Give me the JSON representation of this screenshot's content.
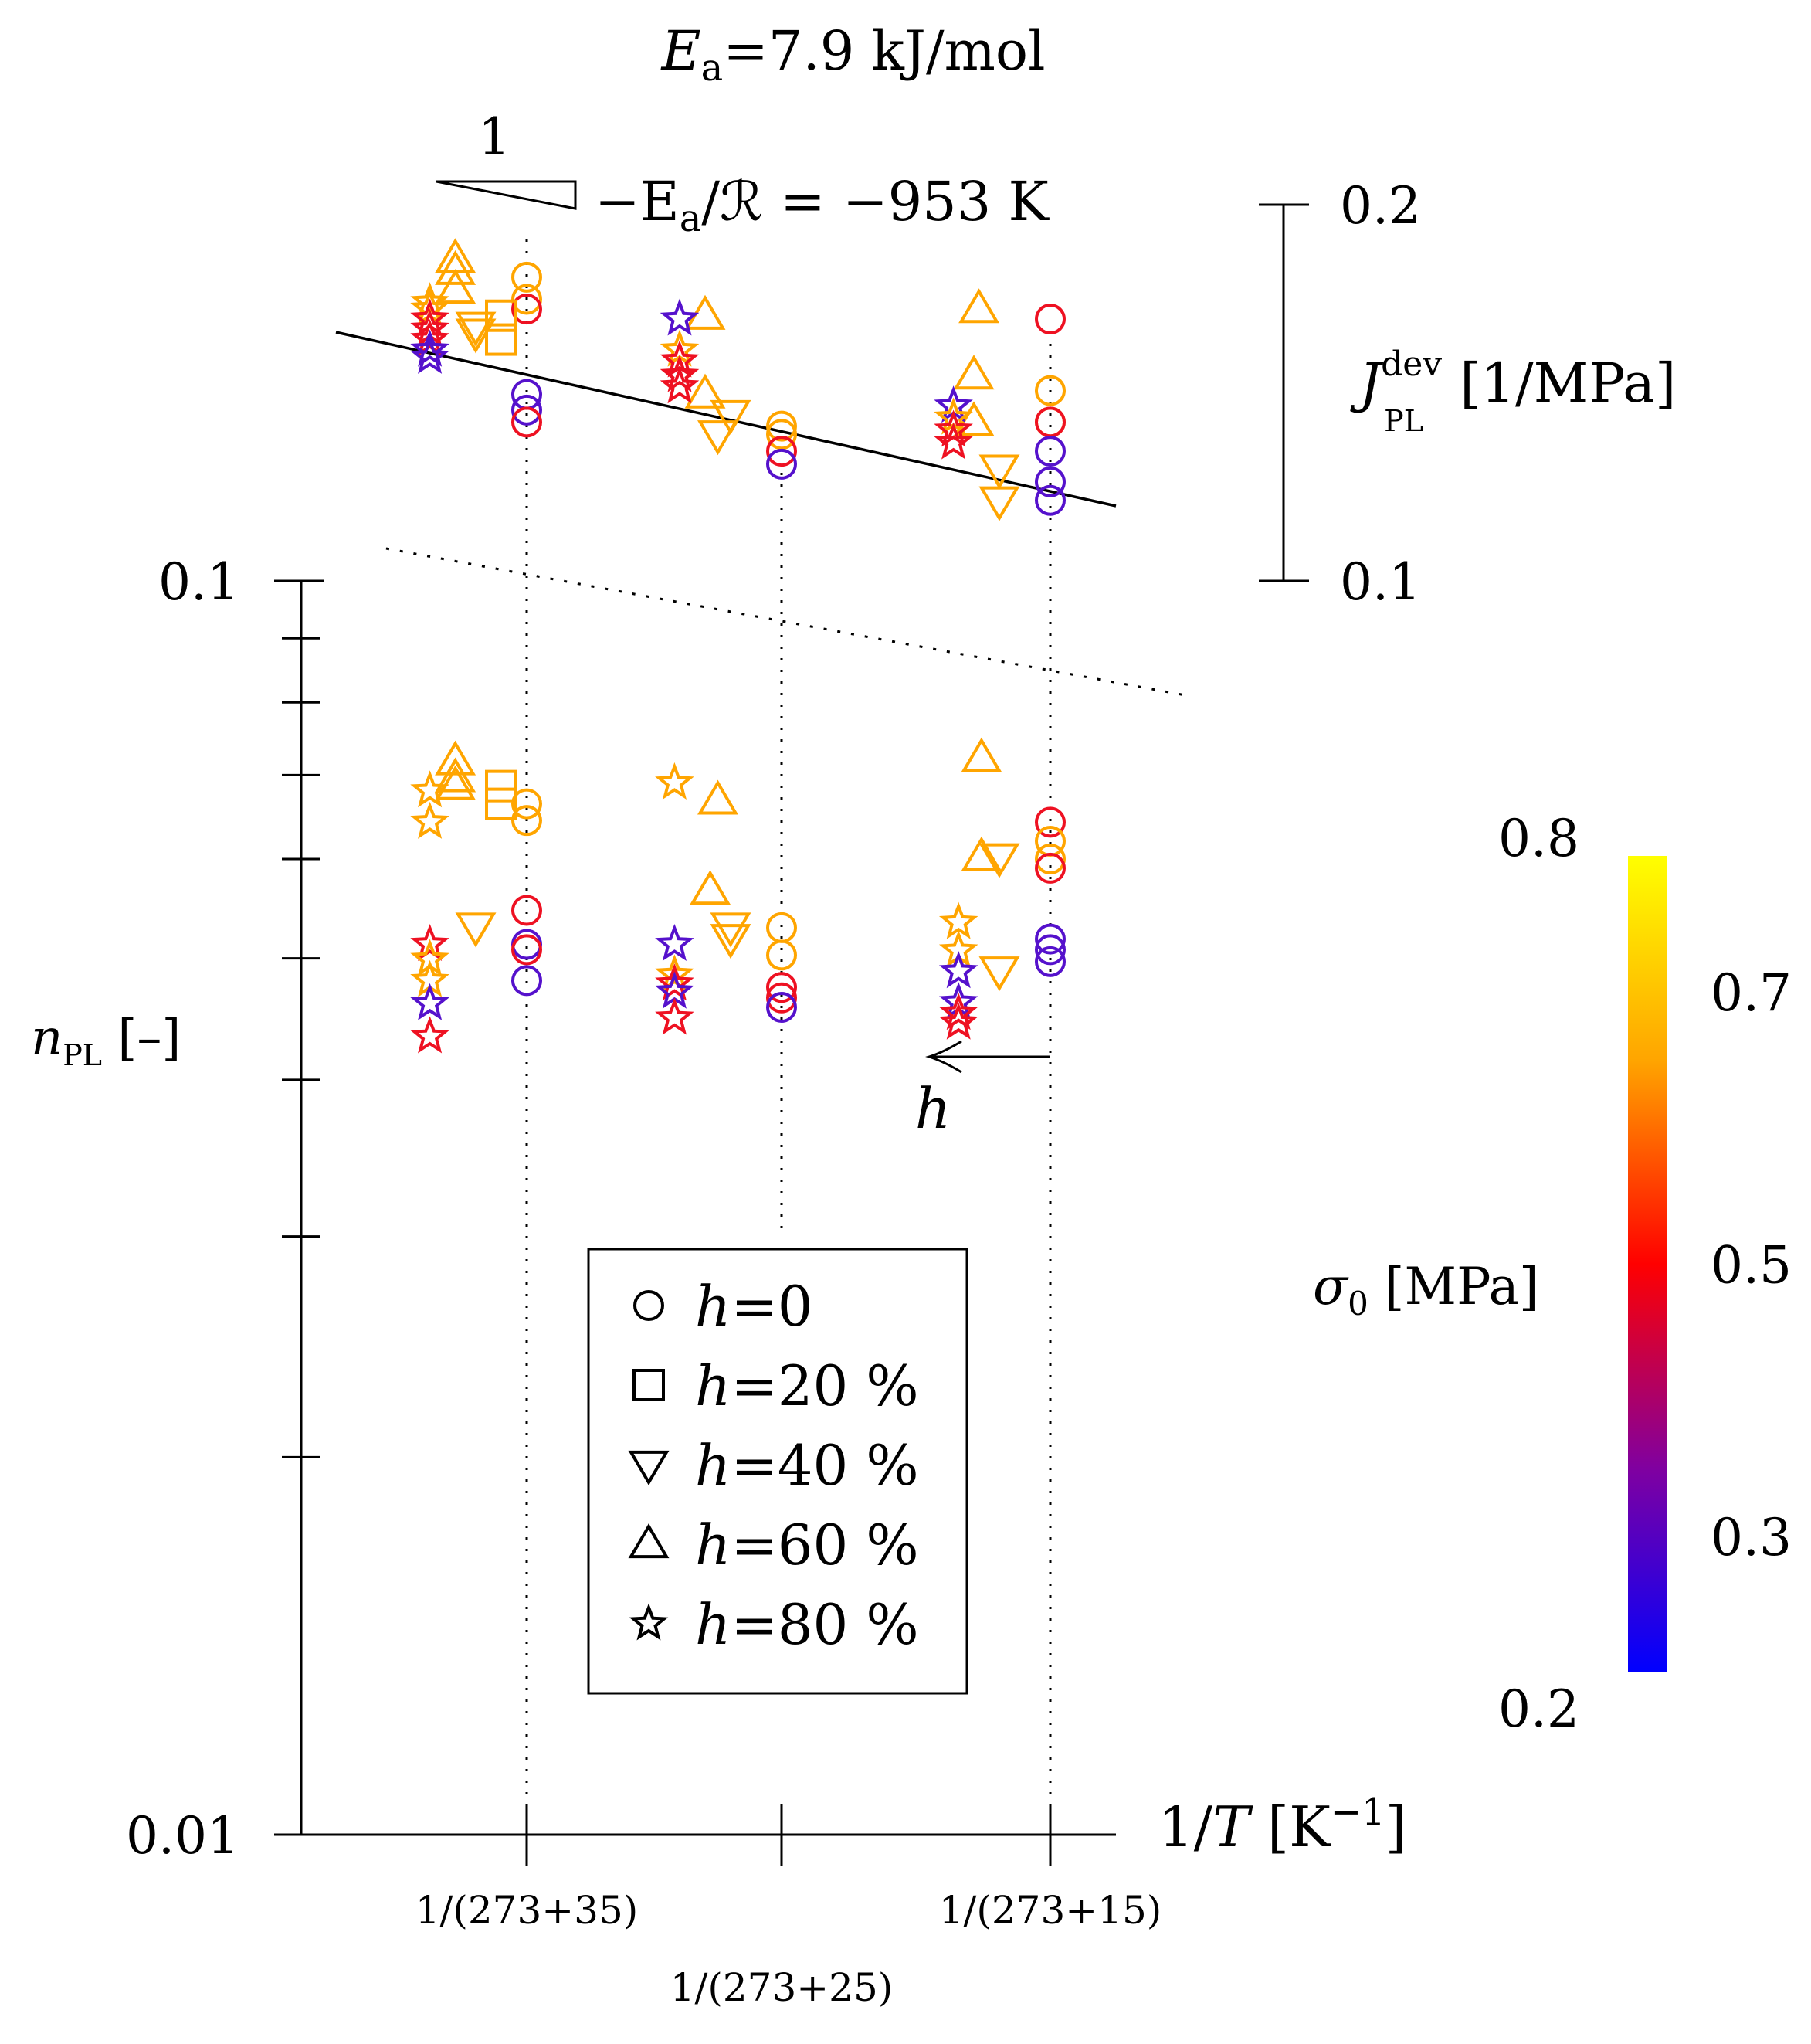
{
  "chart_data": {
    "type": "scatter",
    "title": {
      "main": "E",
      "sub": "a",
      "rest": "=7.9 kJ/mol"
    },
    "slope_annotation": {
      "run": "1",
      "text_pre": "−E",
      "text_sub": "a",
      "text_post": "/ℛ = −953 K"
    },
    "xlabel": {
      "pre": "1/",
      "var": "T",
      "unit_open": " [K",
      "unit_sup": "−1",
      "unit_close": "]"
    },
    "x_categories": [
      "1/(273+35)",
      "1/(273+25)",
      "1/(273+15)"
    ],
    "x_temperatures_C": [
      35,
      25,
      15
    ],
    "left_axis": {
      "label_var": "n",
      "label_sub": "PL",
      "label_unit": " [–]",
      "scale": "log",
      "range": [
        0.01,
        0.1
      ],
      "tick_labels": [
        "0.1",
        "0.01"
      ]
    },
    "right_axis": {
      "label_var": "J",
      "label_sup": "dev",
      "label_sub": "PL",
      "label_unit": " [1/MPa]",
      "scale": "log",
      "range": [
        0.1,
        0.2
      ],
      "tick_labels": [
        "0.2",
        "0.1"
      ]
    },
    "colorbar": {
      "label_var": "σ",
      "label_sub": "0",
      "label_unit": " [MPa]",
      "range": [
        0.2,
        0.8
      ],
      "tick_labels": [
        {
          "v": 0.8,
          "t": "0.8"
        },
        {
          "v": 0.7,
          "t": "0.7"
        },
        {
          "v": 0.5,
          "t": "0.5"
        },
        {
          "v": 0.3,
          "t": "0.3"
        },
        {
          "v": 0.2,
          "t": "0.2"
        }
      ],
      "colors": [
        "#0000ff",
        "#8000a0",
        "#ff0000",
        "#ffa500",
        "#ffff00"
      ]
    },
    "arrow_label": "h",
    "legend": {
      "placement": "bottom-center",
      "entries": [
        {
          "marker": "circle",
          "var": "h",
          "text": "=0"
        },
        {
          "marker": "square",
          "var": "h",
          "text": "=20 %"
        },
        {
          "marker": "triangle-down",
          "var": "h",
          "text": "=40 %"
        },
        {
          "marker": "triangle-up",
          "var": "h",
          "text": "=60 %"
        },
        {
          "marker": "star",
          "var": "h",
          "text": "=80 %"
        }
      ]
    },
    "colors": {
      "orange": "#ffa500",
      "red": "#ee1122",
      "purple": "#5511cc"
    },
    "fit_line": {
      "slope_K": -953,
      "style": "solid"
    },
    "series_J": [
      {
        "T": 35,
        "marker": "circle",
        "points": [
          [
            0,
            0.175,
            "orange"
          ],
          [
            0,
            0.168,
            "orange"
          ],
          [
            0,
            0.165,
            "red"
          ],
          [
            0,
            0.141,
            "purple"
          ],
          [
            0,
            0.137,
            "purple"
          ],
          [
            0,
            0.134,
            "red"
          ]
        ]
      },
      {
        "T": 35,
        "marker": "square",
        "points": [
          [
            -0.1,
            0.163,
            "orange"
          ],
          [
            -0.1,
            0.156,
            "orange"
          ]
        ]
      },
      {
        "T": 35,
        "marker": "triangle-down",
        "points": [
          [
            -0.2,
            0.16,
            "orange"
          ],
          [
            -0.2,
            0.158,
            "orange"
          ]
        ]
      },
      {
        "T": 35,
        "marker": "triangle-up",
        "points": [
          [
            -0.28,
            0.181,
            "orange"
          ],
          [
            -0.28,
            0.177,
            "orange"
          ],
          [
            -0.28,
            0.171,
            "orange"
          ]
        ]
      },
      {
        "T": 35,
        "marker": "star",
        "points": [
          [
            -0.38,
            0.167,
            "orange"
          ],
          [
            -0.38,
            0.165,
            "orange"
          ],
          [
            -0.38,
            0.162,
            "red"
          ],
          [
            -0.38,
            0.159,
            "red"
          ],
          [
            -0.38,
            0.156,
            "red"
          ],
          [
            -0.38,
            0.153,
            "purple"
          ],
          [
            -0.38,
            0.151,
            "purple"
          ]
        ]
      },
      {
        "T": 25,
        "marker": "circle",
        "points": [
          [
            0,
            0.133,
            "orange"
          ],
          [
            0,
            0.131,
            "orange"
          ],
          [
            0,
            0.127,
            "red"
          ],
          [
            0,
            0.124,
            "purple"
          ]
        ]
      },
      {
        "T": 25,
        "marker": "triangle-down",
        "points": [
          [
            -0.2,
            0.136,
            "orange"
          ],
          [
            -0.25,
            0.131,
            "orange"
          ]
        ]
      },
      {
        "T": 25,
        "marker": "triangle-up",
        "points": [
          [
            -0.3,
            0.163,
            "orange"
          ],
          [
            -0.3,
            0.141,
            "orange"
          ]
        ]
      },
      {
        "T": 25,
        "marker": "star",
        "points": [
          [
            -0.4,
            0.162,
            "purple"
          ],
          [
            -0.4,
            0.153,
            "orange"
          ],
          [
            -0.4,
            0.15,
            "red"
          ],
          [
            -0.4,
            0.146,
            "red"
          ],
          [
            -0.4,
            0.143,
            "red"
          ]
        ]
      },
      {
        "T": 15,
        "marker": "circle",
        "points": [
          [
            0,
            0.162,
            "red"
          ],
          [
            0,
            0.142,
            "orange"
          ],
          [
            0,
            0.134,
            "orange"
          ],
          [
            0,
            0.134,
            "red"
          ],
          [
            0,
            0.127,
            "purple"
          ],
          [
            0,
            0.12,
            "purple"
          ],
          [
            0,
            0.116,
            "purple"
          ]
        ]
      },
      {
        "T": 15,
        "marker": "triangle-down",
        "points": [
          [
            -0.2,
            0.123,
            "orange"
          ],
          [
            -0.2,
            0.116,
            "orange"
          ]
        ]
      },
      {
        "T": 15,
        "marker": "triangle-up",
        "points": [
          [
            -0.28,
            0.165,
            "orange"
          ],
          [
            -0.3,
            0.146,
            "orange"
          ],
          [
            -0.3,
            0.134,
            "orange"
          ]
        ]
      },
      {
        "T": 15,
        "marker": "star",
        "points": [
          [
            -0.38,
            0.138,
            "purple"
          ],
          [
            -0.38,
            0.135,
            "orange"
          ],
          [
            -0.38,
            0.132,
            "red"
          ],
          [
            -0.38,
            0.129,
            "red"
          ]
        ]
      }
    ],
    "series_n": [
      {
        "T": 35,
        "marker": "circle",
        "points": [
          [
            0,
            0.0664,
            "orange"
          ],
          [
            0,
            0.0644,
            "orange"
          ],
          [
            0,
            0.0546,
            "red"
          ],
          [
            0,
            0.0513,
            "purple"
          ],
          [
            0,
            0.0508,
            "red"
          ],
          [
            0,
            0.048,
            "purple"
          ]
        ]
      },
      {
        "T": 35,
        "marker": "square",
        "points": [
          [
            -0.1,
            0.0686,
            "orange"
          ],
          [
            -0.1,
            0.0664,
            "orange"
          ]
        ]
      },
      {
        "T": 35,
        "marker": "triangle-down",
        "points": [
          [
            -0.2,
            0.053,
            "orange"
          ]
        ]
      },
      {
        "T": 35,
        "marker": "triangle-up",
        "points": [
          [
            -0.28,
            0.0718,
            "orange"
          ],
          [
            -0.28,
            0.0696,
            "orange"
          ],
          [
            -0.28,
            0.0686,
            "orange"
          ]
        ]
      },
      {
        "T": 35,
        "marker": "star",
        "points": [
          [
            -0.38,
            0.068,
            "orange"
          ],
          [
            -0.38,
            0.0642,
            "orange"
          ],
          [
            -0.38,
            0.0513,
            "red"
          ],
          [
            -0.38,
            0.0499,
            "orange"
          ],
          [
            -0.38,
            0.048,
            "orange"
          ],
          [
            -0.38,
            0.046,
            "purple"
          ],
          [
            -0.38,
            0.0433,
            "red"
          ]
        ]
      },
      {
        "T": 25,
        "marker": "circle",
        "points": [
          [
            0,
            0.0529,
            "orange"
          ],
          [
            0,
            0.0503,
            "orange"
          ],
          [
            0,
            0.0474,
            "red"
          ],
          [
            0,
            0.0465,
            "red"
          ],
          [
            0,
            0.0457,
            "purple"
          ]
        ]
      },
      {
        "T": 25,
        "marker": "triangle-down",
        "points": [
          [
            -0.2,
            0.053,
            "orange"
          ],
          [
            -0.2,
            0.0519,
            "orange"
          ]
        ]
      },
      {
        "T": 25,
        "marker": "triangle-up",
        "points": [
          [
            -0.25,
            0.0668,
            "orange"
          ],
          [
            -0.28,
            0.0566,
            "orange"
          ]
        ]
      },
      {
        "T": 25,
        "marker": "star",
        "points": [
          [
            -0.42,
            0.069,
            "orange"
          ],
          [
            -0.42,
            0.0513,
            "purple"
          ],
          [
            -0.42,
            0.0485,
            "orange"
          ],
          [
            -0.42,
            0.0477,
            "red"
          ],
          [
            -0.42,
            0.047,
            "purple"
          ],
          [
            -0.42,
            0.0448,
            "red"
          ]
        ]
      },
      {
        "T": 15,
        "marker": "circle",
        "points": [
          [
            0,
            0.0642,
            "red"
          ],
          [
            0,
            0.062,
            "orange"
          ],
          [
            0,
            0.06,
            "orange"
          ],
          [
            0,
            0.059,
            "red"
          ],
          [
            0,
            0.0518,
            "purple"
          ],
          [
            0,
            0.0508,
            "purple"
          ],
          [
            0,
            0.0497,
            "purple"
          ]
        ]
      },
      {
        "T": 15,
        "marker": "triangle-down",
        "points": [
          [
            -0.2,
            0.0602,
            "orange"
          ],
          [
            -0.2,
            0.0489,
            "orange"
          ]
        ]
      },
      {
        "T": 15,
        "marker": "triangle-up",
        "points": [
          [
            -0.27,
            0.0722,
            "orange"
          ],
          [
            -0.27,
            0.0602,
            "orange"
          ]
        ]
      },
      {
        "T": 15,
        "marker": "star",
        "points": [
          [
            -0.36,
            0.0534,
            "orange"
          ],
          [
            -0.36,
            0.0507,
            "orange"
          ],
          [
            -0.36,
            0.0488,
            "purple"
          ],
          [
            -0.36,
            0.0461,
            "purple"
          ],
          [
            -0.36,
            0.0452,
            "red"
          ],
          [
            -0.36,
            0.0444,
            "red"
          ]
        ]
      }
    ]
  }
}
